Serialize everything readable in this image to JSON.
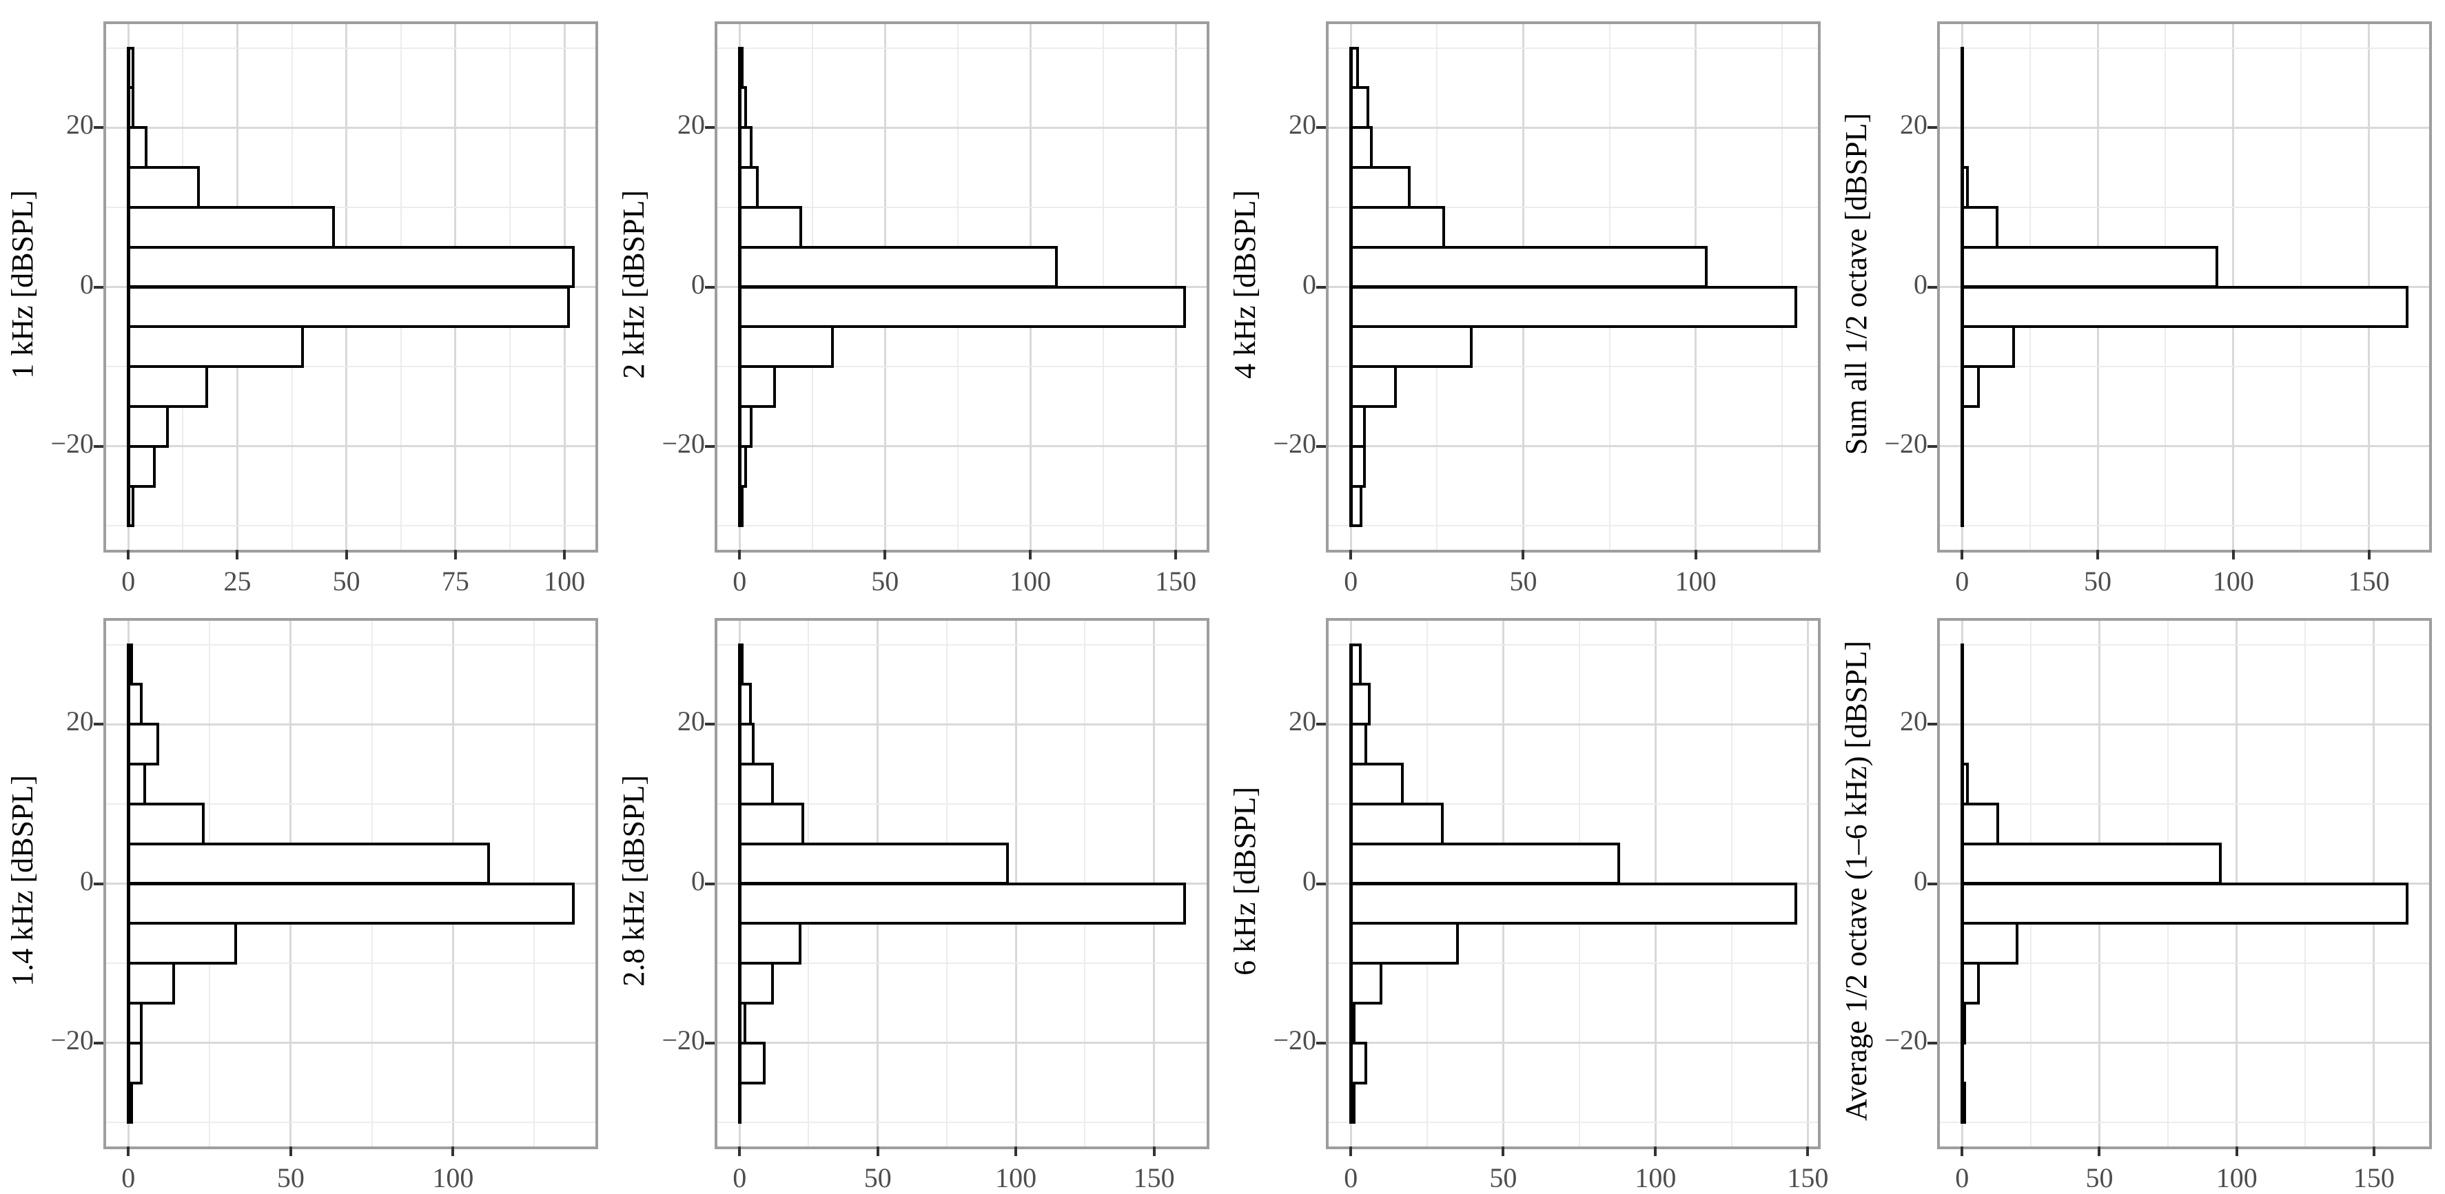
{
  "figure": {
    "kind": "faceted horizontal histograms",
    "rows": 2,
    "cols": 4,
    "background": "#ffffff",
    "colors": {
      "bar_fill": "#ffffff",
      "bar_stroke": "#000000",
      "grid_major": "#d9d9d9",
      "grid_minor": "#ececec",
      "panel_border": "#9e9e9e",
      "tick_mark": "#333333",
      "tick_label": "#4d4d4d",
      "axis_title": "#000000"
    }
  },
  "y_axis": {
    "range": [
      -33,
      33
    ],
    "major_ticks": [
      20,
      0,
      -20
    ],
    "major_tick_labels": [
      "20",
      "0",
      "−20"
    ],
    "minor_gridlines": [
      30,
      10,
      -10,
      -30
    ],
    "bin_width": 5,
    "top_bin_edge": 30,
    "bottom_bin_edge": -30
  },
  "chart_data": [
    {
      "type": "bar",
      "orientation": "horizontal-histogram",
      "title": "1 kHz [dBSPL]",
      "ylabel": "1 kHz [dBSPL]",
      "xlabel": "",
      "x_ticks": [
        0,
        25,
        50,
        75,
        100
      ],
      "bin_top_edges": [
        30,
        25,
        20,
        15,
        10,
        5,
        0,
        -5,
        -10,
        -15,
        -20,
        -25
      ],
      "counts": [
        1,
        1,
        4,
        16,
        47,
        102,
        101,
        40,
        18,
        9,
        6,
        1
      ]
    },
    {
      "type": "bar",
      "orientation": "horizontal-histogram",
      "title": "2 kHz [dBSPL]",
      "ylabel": "2 kHz [dBSPL]",
      "xlabel": "",
      "x_ticks": [
        0,
        50,
        100,
        150
      ],
      "bin_top_edges": [
        30,
        25,
        20,
        15,
        10,
        5,
        0,
        -5,
        -10,
        -15,
        -20,
        -25
      ],
      "counts": [
        1,
        2,
        4,
        6,
        21,
        109,
        153,
        32,
        12,
        4,
        2,
        1
      ]
    },
    {
      "type": "bar",
      "orientation": "horizontal-histogram",
      "title": "4 kHz [dBSPL]",
      "ylabel": "4 kHz [dBSPL]",
      "xlabel": "",
      "x_ticks": [
        0,
        50,
        100
      ],
      "bin_top_edges": [
        30,
        25,
        20,
        15,
        10,
        5,
        0,
        -5,
        -10,
        -15,
        -20,
        -25
      ],
      "counts": [
        2,
        5,
        6,
        17,
        27,
        103,
        129,
        35,
        13,
        4,
        4,
        3
      ]
    },
    {
      "type": "bar",
      "orientation": "horizontal-histogram",
      "title": "Sum all 1/2 octave [dBSPL]",
      "ylabel": "Sum all 1/2 octave [dBSPL]",
      "xlabel": "",
      "x_ticks": [
        0,
        50,
        100,
        150
      ],
      "bin_top_edges": [
        30,
        25,
        20,
        15,
        10,
        5,
        0,
        -5,
        -10,
        -15,
        -20,
        -25
      ],
      "counts": [
        0,
        0,
        0,
        2,
        13,
        94,
        164,
        19,
        6,
        0,
        0,
        0
      ]
    },
    {
      "type": "bar",
      "orientation": "horizontal-histogram",
      "title": "1.4 kHz [dBSPL]",
      "ylabel": "1.4 kHz [dBSPL]",
      "xlabel": "",
      "x_ticks": [
        0,
        50,
        100
      ],
      "bin_top_edges": [
        30,
        25,
        20,
        15,
        10,
        5,
        0,
        -5,
        -10,
        -15,
        -20,
        -25
      ],
      "counts": [
        1,
        4,
        9,
        5,
        23,
        111,
        137,
        33,
        14,
        4,
        4,
        1
      ]
    },
    {
      "type": "bar",
      "orientation": "horizontal-histogram",
      "title": "2.8 kHz [dBSPL]",
      "ylabel": "2.8 kHz [dBSPL]",
      "xlabel": "",
      "x_ticks": [
        0,
        50,
        100,
        150
      ],
      "bin_top_edges": [
        30,
        25,
        20,
        15,
        10,
        5,
        0,
        -5,
        -10,
        -15,
        -20,
        -25
      ],
      "counts": [
        1,
        4,
        5,
        12,
        23,
        97,
        161,
        22,
        12,
        2,
        9,
        0
      ]
    },
    {
      "type": "bar",
      "orientation": "horizontal-histogram",
      "title": "6 kHz [dBSPL]",
      "ylabel": "6 kHz [dBSPL]",
      "xlabel": "",
      "x_ticks": [
        0,
        50,
        100,
        150
      ],
      "bin_top_edges": [
        30,
        25,
        20,
        15,
        10,
        5,
        0,
        -5,
        -10,
        -15,
        -20,
        -25
      ],
      "counts": [
        3,
        6,
        5,
        17,
        30,
        88,
        146,
        35,
        10,
        1,
        5,
        1
      ]
    },
    {
      "type": "bar",
      "orientation": "horizontal-histogram",
      "title": "Average 1/2 octave (1–6 kHz) [dBSPL]",
      "ylabel": "Average 1/2 octave (1–6 kHz) [dBSPL]",
      "xlabel": "",
      "x_ticks": [
        0,
        50,
        100,
        150
      ],
      "bin_top_edges": [
        30,
        25,
        20,
        15,
        10,
        5,
        0,
        -5,
        -10,
        -15,
        -20,
        -25
      ],
      "counts": [
        0,
        0,
        0,
        2,
        13,
        94,
        162,
        20,
        6,
        1,
        0,
        1
      ]
    }
  ]
}
